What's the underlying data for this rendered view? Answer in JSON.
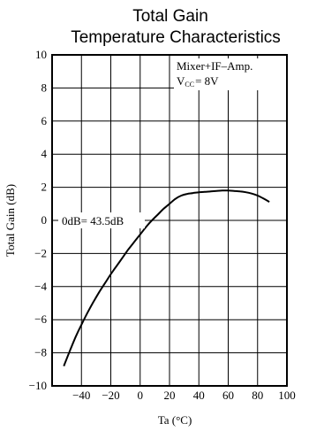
{
  "chart_data": {
    "type": "line",
    "title_line1": "Total Gain",
    "title_line2": "Temperature Characteristics",
    "xlabel": "Ta (°C)",
    "ylabel": "Total Gain (dB)",
    "xlim": [
      -60,
      100
    ],
    "ylim": [
      -10,
      10
    ],
    "xticks": [
      "−40",
      "−20",
      "0",
      "20",
      "40",
      "60",
      "80",
      "100"
    ],
    "yticks": [
      "10",
      "8",
      "6",
      "4",
      "2",
      "0",
      "−2",
      "−4",
      "−6",
      "−8",
      "−10"
    ],
    "grid": true,
    "legend_line1": "Mixer+IF–Amp.",
    "legend_vcc": "V",
    "legend_vcc_sub": "CC",
    "legend_vcc_value": "= 8V",
    "annotation": "0dB= 43.5dB",
    "series": [
      {
        "x": [
          -52,
          -48,
          -44,
          -40,
          -36,
          -32,
          -28,
          -24,
          -20,
          -16,
          -12,
          -8,
          -4,
          0,
          4,
          8,
          12,
          16,
          20,
          24,
          28,
          32,
          36,
          40,
          44,
          48,
          52,
          56,
          60,
          64,
          68,
          72,
          76,
          80,
          84,
          88
        ],
        "values": [
          -8.8,
          -7.9,
          -7.05,
          -6.3,
          -5.6,
          -4.95,
          -4.35,
          -3.8,
          -3.25,
          -2.75,
          -2.25,
          -1.75,
          -1.3,
          -0.85,
          -0.4,
          0.0,
          0.35,
          0.7,
          1.0,
          1.3,
          1.5,
          1.6,
          1.65,
          1.7,
          1.72,
          1.75,
          1.78,
          1.8,
          1.8,
          1.78,
          1.75,
          1.7,
          1.62,
          1.5,
          1.32,
          1.12
        ]
      }
    ]
  }
}
